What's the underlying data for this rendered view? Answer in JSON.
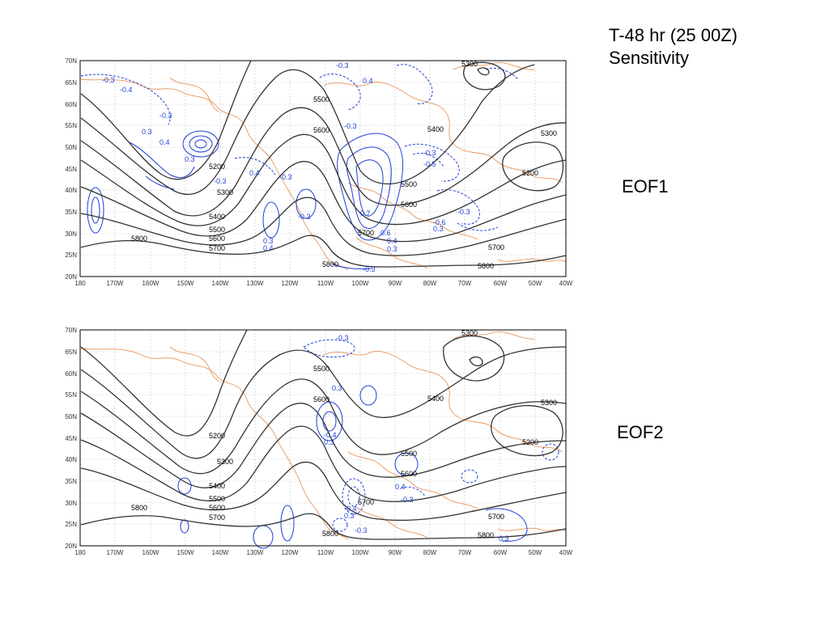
{
  "slide": {
    "title_line1": "T-48 hr   (25 00Z)",
    "title_line2": "Sensitivity"
  },
  "axes": {
    "lat_ticks": [
      "70N",
      "65N",
      "60N",
      "55N",
      "50N",
      "45N",
      "40N",
      "35N",
      "30N",
      "25N",
      "20N"
    ],
    "lon_ticks": [
      "180",
      "170W",
      "160W",
      "150W",
      "140W",
      "130W",
      "120W",
      "110W",
      "100W",
      "90W",
      "80W",
      "70W",
      "60W",
      "50W",
      "40W"
    ]
  },
  "colors": {
    "height_contour": "#333333",
    "sensitivity": "#1f3fd6",
    "coastline": "#e8955a",
    "grid": "#b5b5b5"
  },
  "panels": [
    {
      "label": "EOF1",
      "height_labels": [
        "5300",
        "5300",
        "5200",
        "5500",
        "5600",
        "5200",
        "5300",
        "5400",
        "5500",
        "5600",
        "5700",
        "5800",
        "5700",
        "5500",
        "5600",
        "5400",
        "5700",
        "5800",
        "5800"
      ],
      "sens_labels": [
        "-0.3",
        "-0.4",
        "-0.3",
        "0.3",
        "0.4",
        "0.3",
        "-0.3",
        "0.4",
        "-0.3",
        "-0.3",
        "-0.3",
        "-0.5",
        "-0.6",
        "-0.3",
        "0.3",
        "-0.3",
        "0.3",
        "0.4",
        "0.7",
        "0.6",
        "0.4",
        "0.3",
        "0.4",
        "-0.3",
        "-0.3"
      ]
    },
    {
      "label": "EOF2",
      "height_labels": [
        "5300",
        "5500",
        "5600",
        "5400",
        "5300",
        "5200",
        "5200",
        "5300",
        "5400",
        "5500",
        "5600",
        "5700",
        "5800",
        "5500",
        "5600",
        "5700",
        "5700",
        "5800",
        "5800"
      ],
      "sens_labels": [
        "-0.3",
        "0.3",
        "-0.4",
        "0.3",
        "0.4",
        "-0.3",
        "-0.4",
        "0.3",
        "-0.3",
        "0.3"
      ]
    }
  ]
}
